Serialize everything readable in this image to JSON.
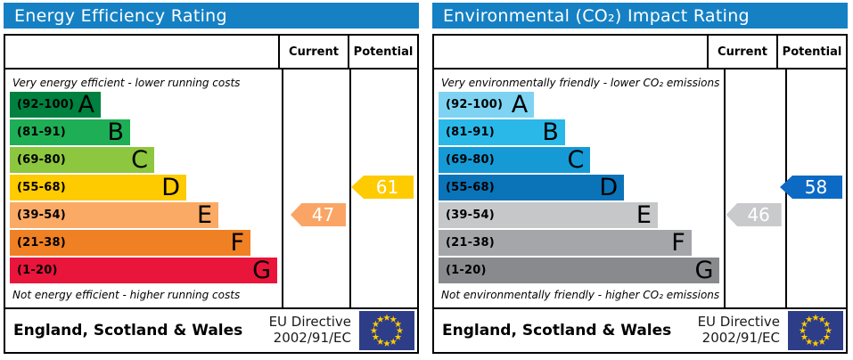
{
  "eu_flag": {
    "background": "#2e3d87",
    "star_color": "#ffcc00"
  },
  "panels": [
    {
      "title": "Energy Efficiency Rating",
      "title_bg": "#1581c4",
      "columns": {
        "current": "Current",
        "potential": "Potential"
      },
      "top_note": "Very energy efficient - lower running costs",
      "bottom_note": "Not energy efficient - higher running costs",
      "bands": [
        {
          "range": "(92-100)",
          "letter": "A",
          "color": "#00813f",
          "width": "34%"
        },
        {
          "range": "(81-91)",
          "letter": "B",
          "color": "#1eae55",
          "width": "45%"
        },
        {
          "range": "(69-80)",
          "letter": "C",
          "color": "#8dc63f",
          "width": "54%"
        },
        {
          "range": "(55-68)",
          "letter": "D",
          "color": "#fecb00",
          "width": "66%"
        },
        {
          "range": "(39-54)",
          "letter": "E",
          "color": "#fbaa65",
          "width": "78%"
        },
        {
          "range": "(21-38)",
          "letter": "F",
          "color": "#ef8023",
          "width": "90%"
        },
        {
          "range": "(1-20)",
          "letter": "G",
          "color": "#e9153b",
          "width": "100%"
        }
      ],
      "current": {
        "value": "47",
        "color": "#faa566",
        "band": "E"
      },
      "potential": {
        "value": "61",
        "color": "#fecb00",
        "band": "D"
      },
      "footer": {
        "region": "England, Scotland & Wales",
        "directive_line1": "EU Directive",
        "directive_line2": "2002/91/EC"
      }
    },
    {
      "title": "Environmental (CO₂) Impact Rating",
      "title_bg": "#1581c4",
      "columns": {
        "current": "Current",
        "potential": "Potential"
      },
      "top_note": "Very environmentally friendly - lower CO₂ emissions",
      "bottom_note": "Not environmentally friendly - higher CO₂ emissions",
      "bands": [
        {
          "range": "(92-100)",
          "letter": "A",
          "color": "#7ed3f2",
          "width": "34%"
        },
        {
          "range": "(81-91)",
          "letter": "B",
          "color": "#2ab8e8",
          "width": "45%"
        },
        {
          "range": "(69-80)",
          "letter": "C",
          "color": "#159ad6",
          "width": "54%"
        },
        {
          "range": "(55-68)",
          "letter": "D",
          "color": "#0b73b8",
          "width": "66%"
        },
        {
          "range": "(39-54)",
          "letter": "E",
          "color": "#c6c7c9",
          "width": "78%"
        },
        {
          "range": "(21-38)",
          "letter": "F",
          "color": "#a4a6a9",
          "width": "90%"
        },
        {
          "range": "(1-20)",
          "letter": "G",
          "color": "#888a8d",
          "width": "100%"
        }
      ],
      "current": {
        "value": "46",
        "color": "#c9cacc",
        "band": "E"
      },
      "potential": {
        "value": "58",
        "color": "#0d6ac4",
        "band": "D"
      },
      "footer": {
        "region": "England, Scotland & Wales",
        "directive_line1": "EU Directive",
        "directive_line2": "2002/91/EC"
      }
    }
  ],
  "chart_data": [
    {
      "type": "bar",
      "title": "Energy Efficiency Rating",
      "categories": [
        "A",
        "B",
        "C",
        "D",
        "E",
        "F",
        "G"
      ],
      "band_ranges": [
        "92-100",
        "81-91",
        "69-80",
        "55-68",
        "39-54",
        "21-38",
        "1-20"
      ],
      "values": [
        34,
        45,
        54,
        66,
        78,
        90,
        100
      ],
      "current": 47,
      "current_band": "E",
      "potential": 61,
      "potential_band": "D",
      "top_note": "Very energy efficient - lower running costs",
      "bottom_note": "Not energy efficient - higher running costs",
      "footer": "England, Scotland & Wales — EU Directive 2002/91/EC"
    },
    {
      "type": "bar",
      "title": "Environmental (CO₂) Impact Rating",
      "categories": [
        "A",
        "B",
        "C",
        "D",
        "E",
        "F",
        "G"
      ],
      "band_ranges": [
        "92-100",
        "81-91",
        "69-80",
        "55-68",
        "39-54",
        "21-38",
        "1-20"
      ],
      "values": [
        34,
        45,
        54,
        66,
        78,
        90,
        100
      ],
      "current": 46,
      "current_band": "E",
      "potential": 58,
      "potential_band": "D",
      "top_note": "Very environmentally friendly - lower CO₂ emissions",
      "bottom_note": "Not environmentally friendly - higher CO₂ emissions",
      "footer": "England, Scotland & Wales — EU Directive 2002/91/EC"
    }
  ]
}
